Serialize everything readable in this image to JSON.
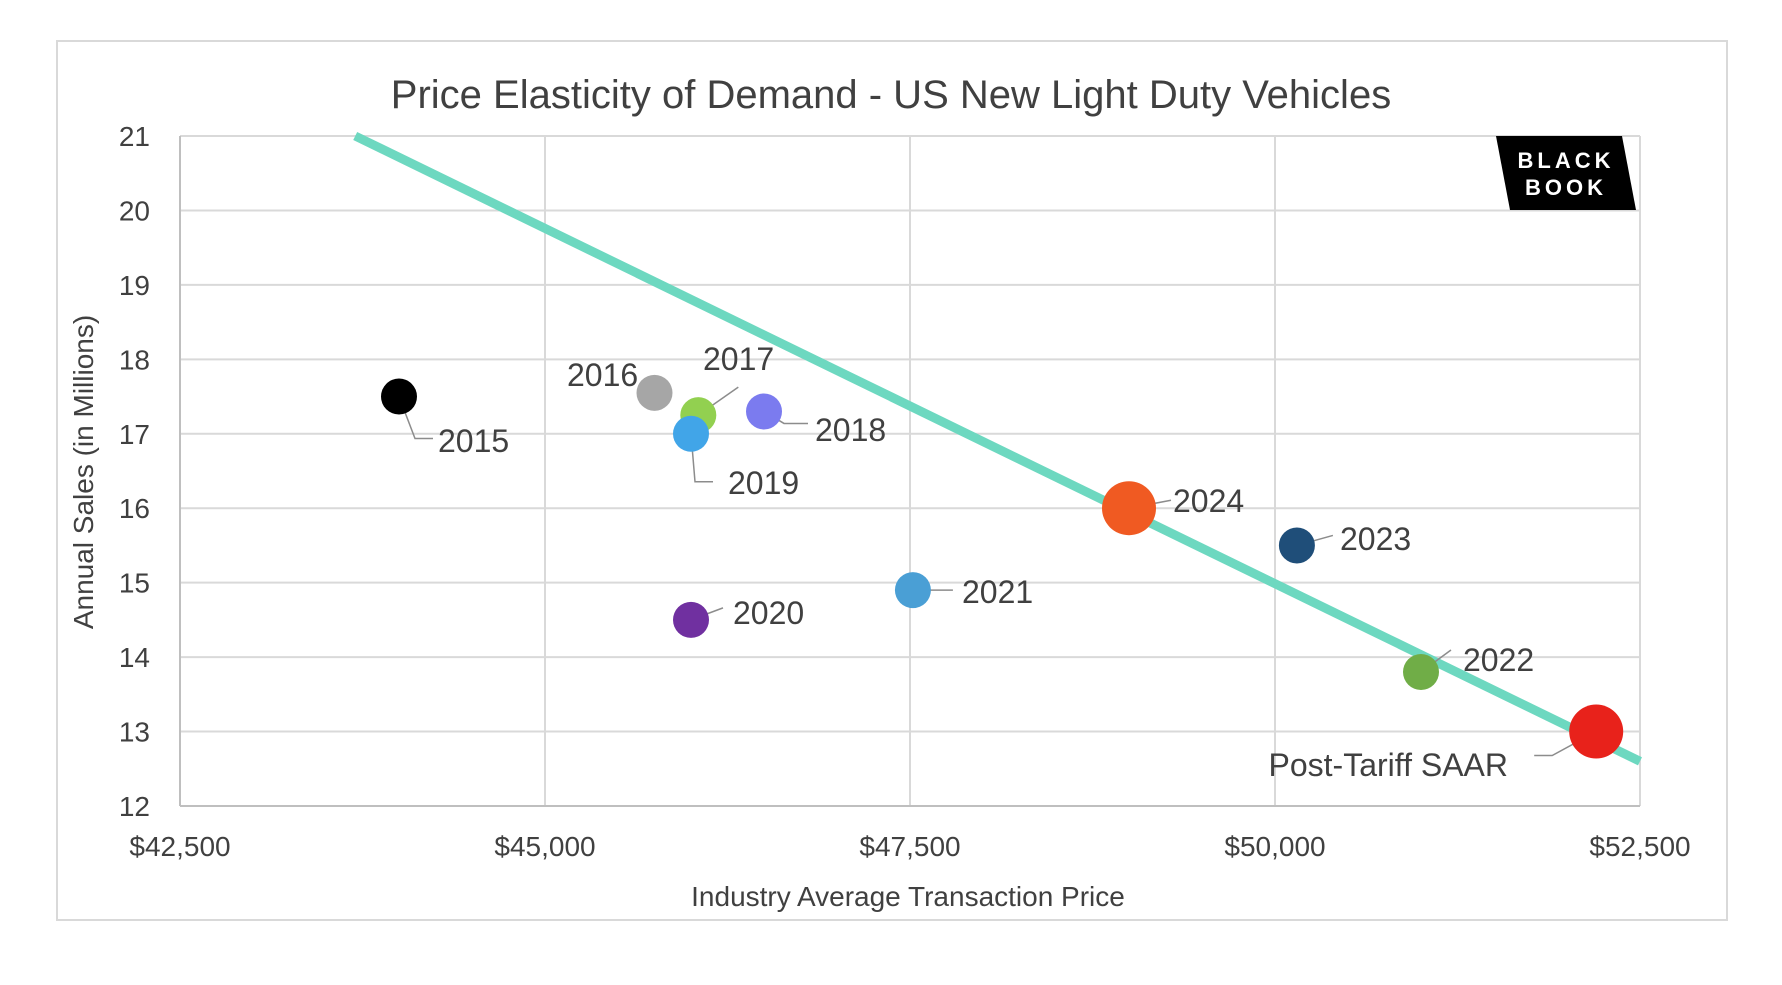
{
  "chart_data": {
    "type": "scatter",
    "title": "Price Elasticity of Demand - US New Light Duty Vehicles",
    "xlabel": "Industry Average Transaction Price",
    "ylabel": "Annual Sales (in Millions)",
    "xlim": [
      42500,
      52500
    ],
    "ylim": [
      12,
      21
    ],
    "x_ticks": [
      42500,
      45000,
      47500,
      50000,
      52500
    ],
    "x_tick_labels": [
      "$42,500",
      "$45,000",
      "$47,500",
      "$50,000",
      "$52,500"
    ],
    "y_ticks": [
      12,
      13,
      14,
      15,
      16,
      17,
      18,
      19,
      20,
      21
    ],
    "y_tick_labels": [
      "12",
      "13",
      "14",
      "15",
      "16",
      "17",
      "18",
      "19",
      "20",
      "21"
    ],
    "grid": true,
    "points": [
      {
        "label": "2015",
        "x": 44000,
        "y": 17.5,
        "color": "#000000",
        "size": "small"
      },
      {
        "label": "2016",
        "x": 45750,
        "y": 17.55,
        "color": "#a6a6a6",
        "size": "small"
      },
      {
        "label": "2017",
        "x": 46050,
        "y": 17.25,
        "color": "#92d050",
        "size": "small"
      },
      {
        "label": "2018",
        "x": 46500,
        "y": 17.3,
        "color": "#7b7bef",
        "size": "small"
      },
      {
        "label": "2019",
        "x": 46000,
        "y": 17.0,
        "color": "#41a5e8",
        "size": "small"
      },
      {
        "label": "2020",
        "x": 46000,
        "y": 14.5,
        "color": "#7030a0",
        "size": "small"
      },
      {
        "label": "2021",
        "x": 47520,
        "y": 14.9,
        "color": "#4a9fd5",
        "size": "small"
      },
      {
        "label": "2022",
        "x": 51000,
        "y": 13.8,
        "color": "#70ad47",
        "size": "small"
      },
      {
        "label": "2023",
        "x": 50150,
        "y": 15.5,
        "color": "#1f4e79",
        "size": "small"
      },
      {
        "label": "2024",
        "x": 49000,
        "y": 16.0,
        "color": "#f05a22",
        "size": "large"
      },
      {
        "label": "Post-Tariff SAAR",
        "x": 52200,
        "y": 13.0,
        "color": "#e8221b",
        "size": "large"
      }
    ],
    "trendline": {
      "color": "#6dd8c0",
      "points": [
        [
          43700,
          21.0
        ],
        [
          52500,
          12.6
        ]
      ]
    }
  },
  "logo": {
    "line1": "BLACK",
    "line2": "BOOK"
  }
}
